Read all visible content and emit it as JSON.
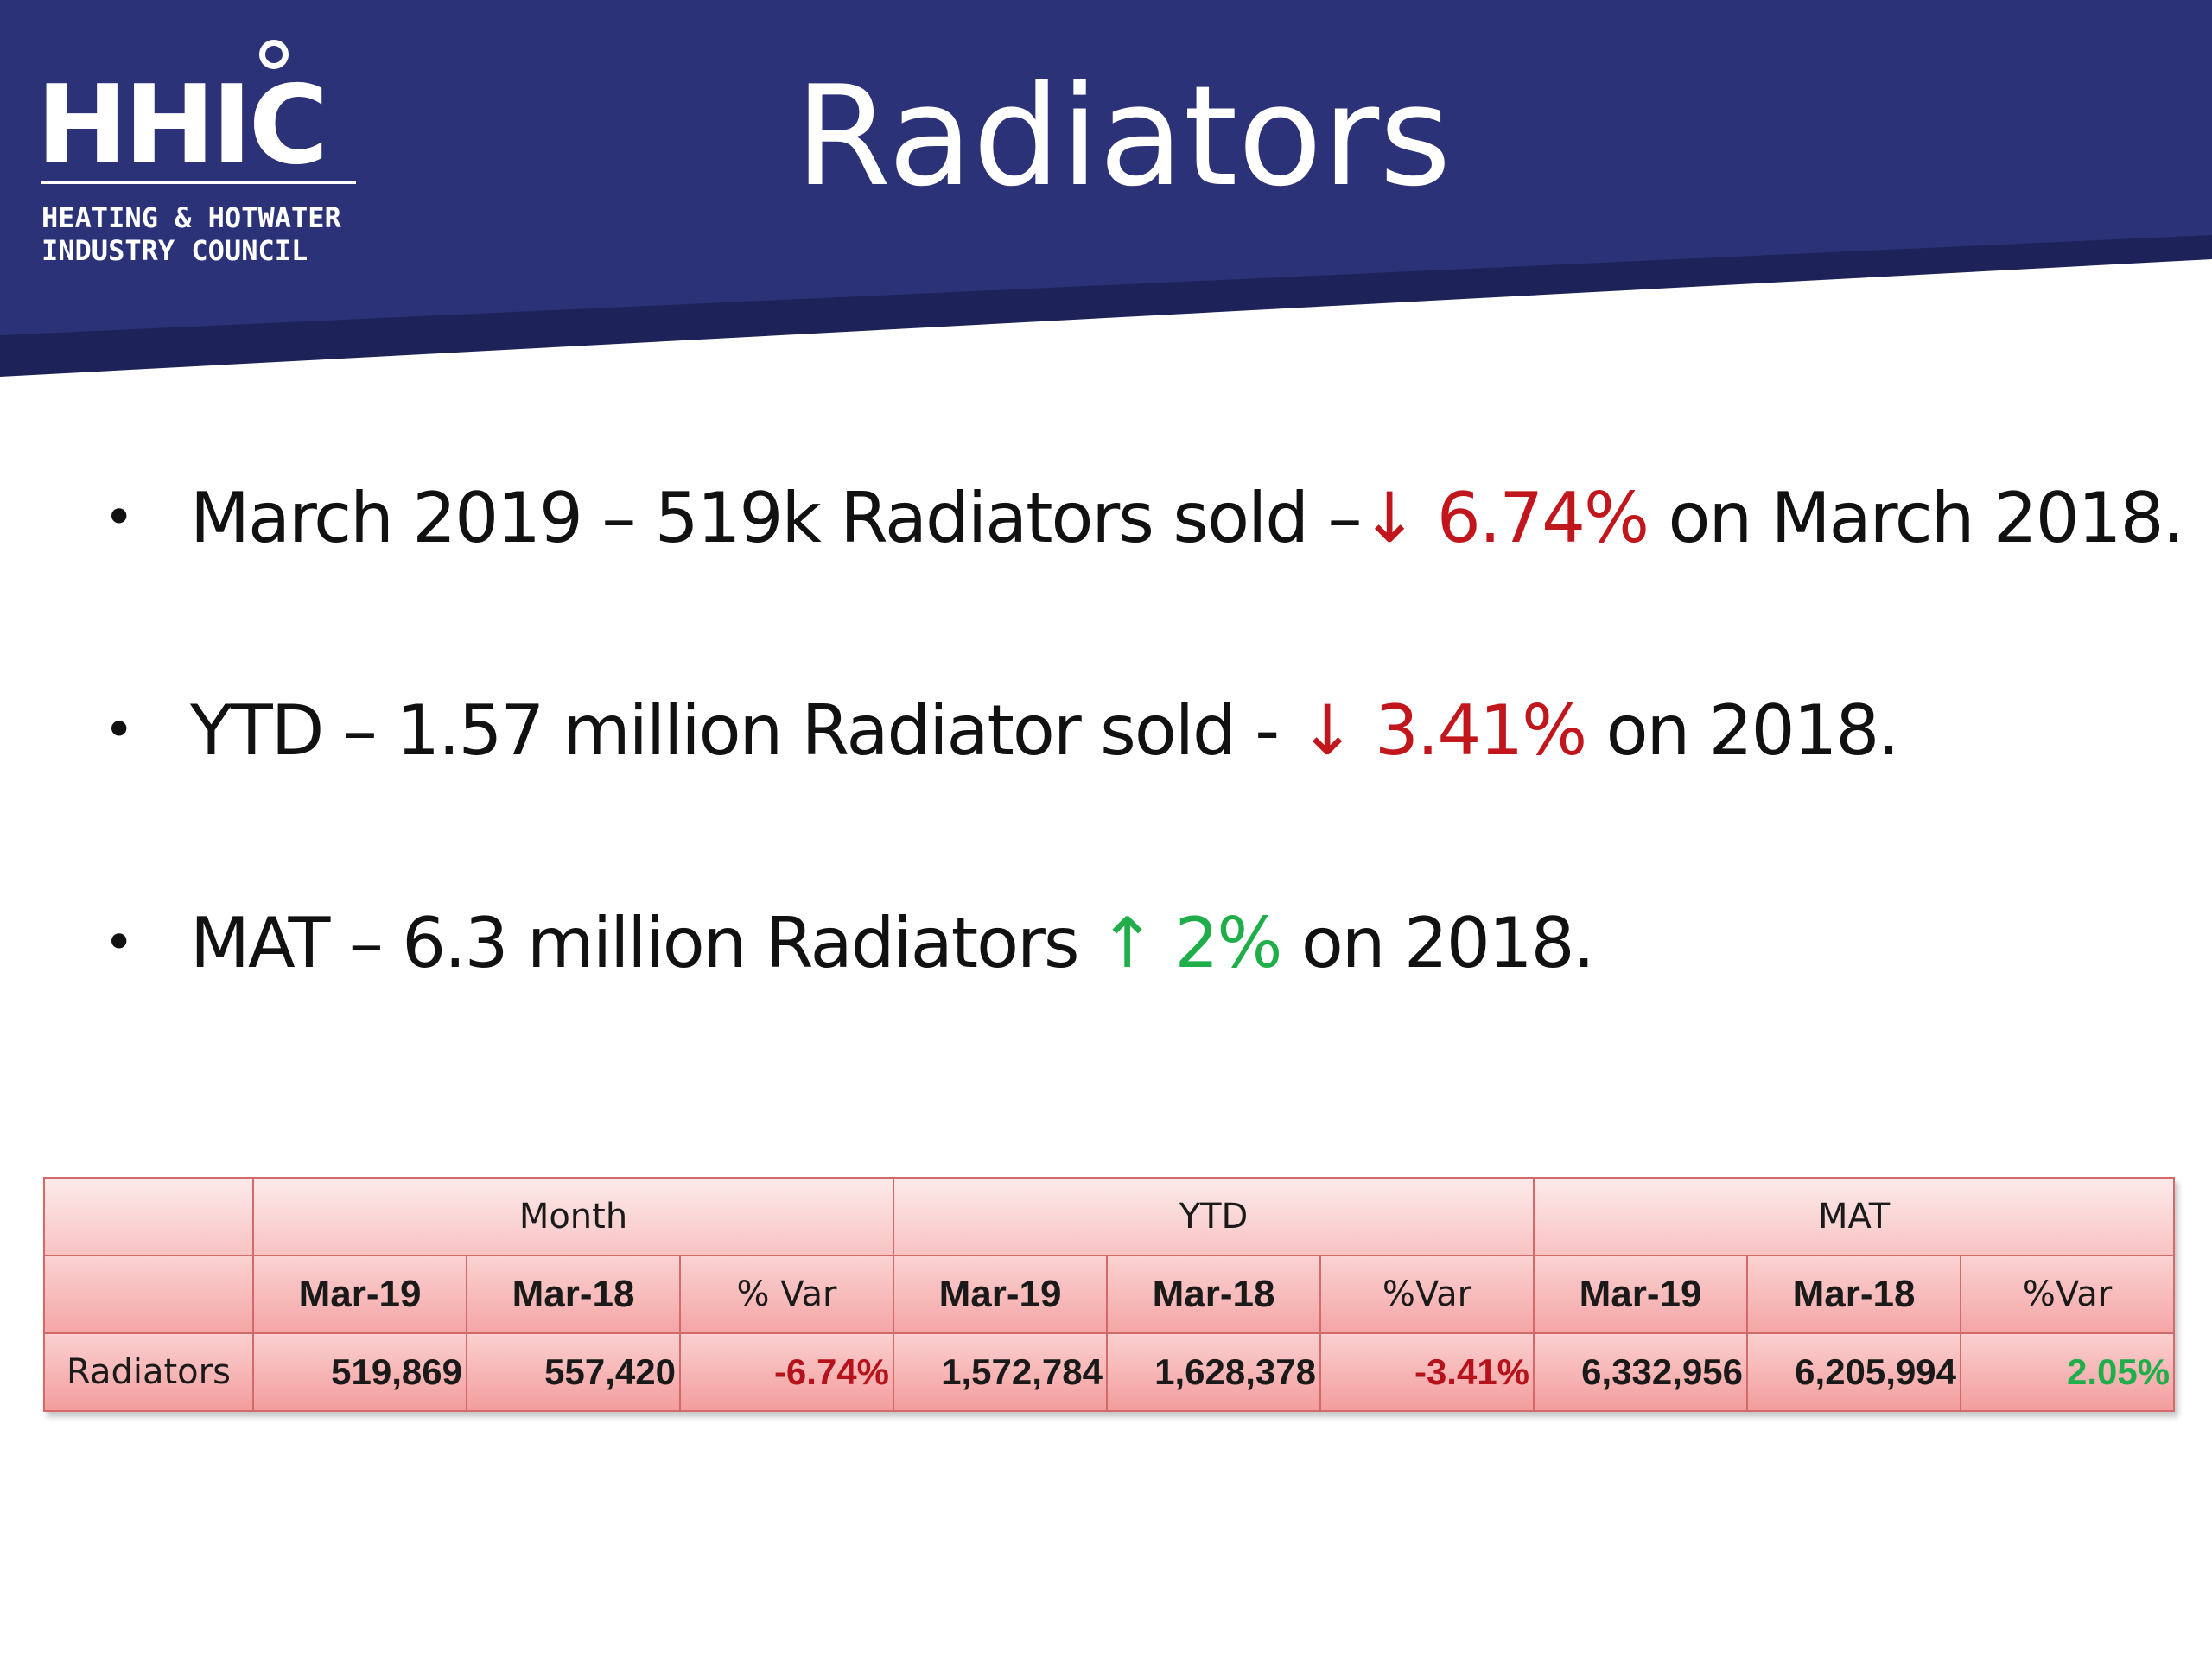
{
  "colors": {
    "header_band": "#2b3278",
    "header_shadow": "#1d2358",
    "negative": "#c0161c",
    "positive": "#1fae4a",
    "table_fill": "#f8c0c0",
    "table_border": "#d26a6a"
  },
  "logo": {
    "mark": "HHIC",
    "subtitle_line1": "HEATING & HOTWATER",
    "subtitle_line2": "INDUSTRY COUNCIL"
  },
  "title": "Radiators",
  "bullets": [
    {
      "bullet": "•",
      "lead": "March 2019 – 519k Radiators sold –",
      "arrow": "↓",
      "change": " 6.74%",
      "tail": " on March 2018.",
      "direction": "down"
    },
    {
      "bullet": "•",
      "lead": "YTD –  1.57 million Radiator sold - ",
      "arrow": "↓",
      "change": " 3.41%",
      "tail": " on 2018.",
      "direction": "down"
    },
    {
      "bullet": "•",
      "lead": "MAT – 6.3 million Radiators ",
      "arrow": "↑",
      "change": " 2%",
      "tail": " on 2018.",
      "direction": "up"
    }
  ],
  "table": {
    "groups": [
      "Month",
      "YTD",
      "MAT"
    ],
    "subheaders": [
      "Mar-19",
      "Mar-18",
      "% Var",
      "Mar-19",
      "Mar-18",
      "%Var",
      "Mar-19",
      "Mar-18",
      "%Var"
    ],
    "row": {
      "label": "Radiators",
      "month": {
        "mar19": "519,869",
        "mar18": "557,420",
        "var": "-6.74%"
      },
      "ytd": {
        "mar19": "1,572,784",
        "mar18": "1,628,378",
        "var": "-3.41%"
      },
      "mat": {
        "mar19": "6,332,956",
        "mar18": "6,205,994",
        "var": "2.05%"
      }
    }
  }
}
